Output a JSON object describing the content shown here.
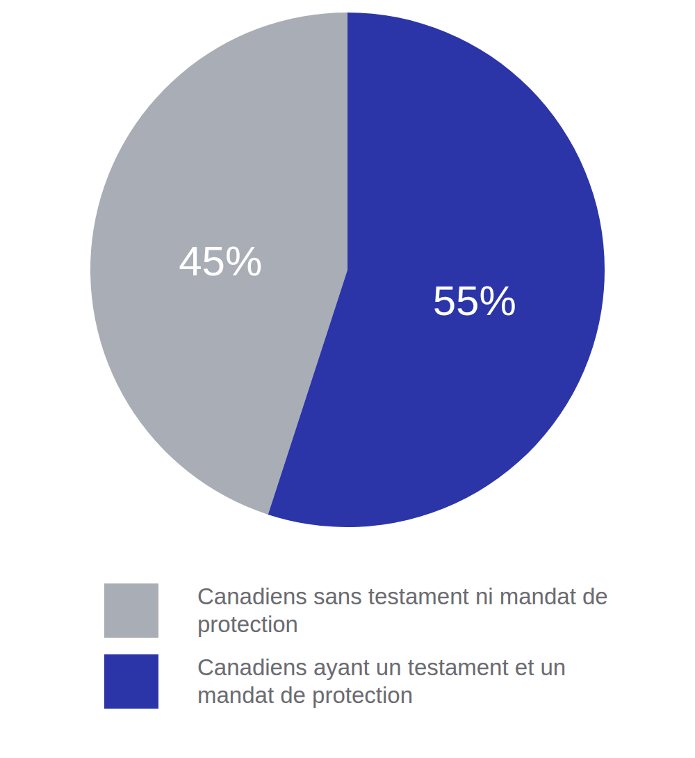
{
  "chart_data": {
    "type": "pie",
    "categories": [
      "Canadiens sans testament ni mandat de protection",
      "Canadiens ayant un testament et un mandat de protection"
    ],
    "values": [
      45,
      55
    ],
    "value_labels": [
      "45%",
      "55%"
    ],
    "colors": [
      "#a9adb5",
      "#2b35a8"
    ],
    "data_labels": true,
    "legend": "bottom"
  }
}
